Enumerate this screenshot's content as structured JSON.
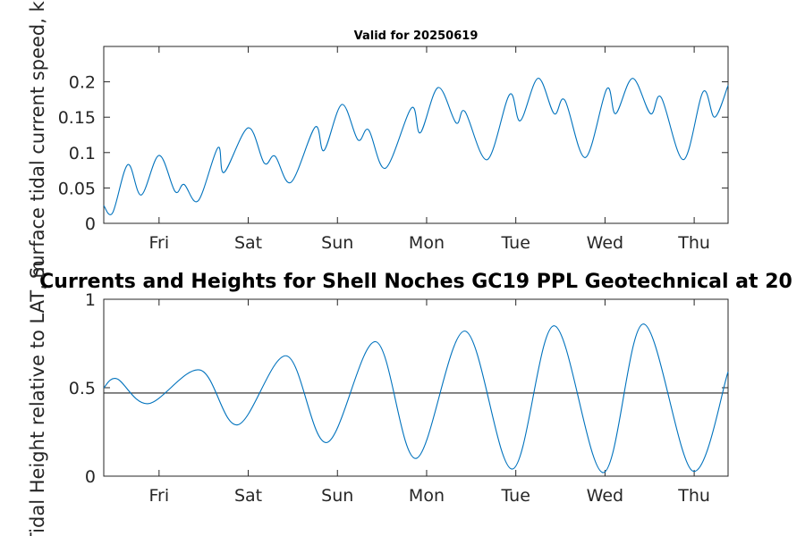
{
  "chart_data": [
    {
      "type": "line",
      "title": "Valid for 20250619",
      "ylabel": "Surface tidal current speed, kn",
      "ylim": [
        0,
        0.25
      ],
      "yticks": [
        0,
        0.05,
        0.1,
        0.15,
        0.2
      ],
      "ytick_labels": [
        "0",
        "0.05",
        "0.1",
        "0.15",
        "0.2"
      ],
      "xlim": [
        0,
        7.0
      ],
      "xtick_labels": [
        "Fri",
        "Sat",
        "Sun",
        "Mon",
        "Tue",
        "Wed",
        "Thu"
      ],
      "xticks": [
        0.62,
        1.62,
        2.62,
        3.62,
        4.62,
        5.62,
        6.62
      ],
      "grid": false,
      "series": [
        {
          "color": "#0072BD",
          "x": [
            0.0,
            0.1,
            0.27,
            0.42,
            0.62,
            0.8,
            0.9,
            1.06,
            1.28,
            1.35,
            1.62,
            1.8,
            1.92,
            2.1,
            2.37,
            2.47,
            2.67,
            2.85,
            2.97,
            3.16,
            3.45,
            3.55,
            3.75,
            3.95,
            4.05,
            4.3,
            4.55,
            4.67,
            4.87,
            5.05,
            5.17,
            5.4,
            5.64,
            5.74,
            5.93,
            6.13,
            6.25,
            6.5,
            6.72,
            6.85,
            7.0
          ],
          "y": [
            0.025,
            0.015,
            0.083,
            0.04,
            0.096,
            0.045,
            0.055,
            0.032,
            0.107,
            0.072,
            0.135,
            0.085,
            0.095,
            0.058,
            0.136,
            0.103,
            0.168,
            0.118,
            0.132,
            0.078,
            0.163,
            0.128,
            0.192,
            0.142,
            0.158,
            0.09,
            0.182,
            0.145,
            0.205,
            0.155,
            0.174,
            0.093,
            0.19,
            0.155,
            0.205,
            0.155,
            0.178,
            0.09,
            0.186,
            0.15,
            0.195
          ]
        }
      ]
    },
    {
      "type": "line",
      "title": "Currents and Heights for Shell Noches   GC19 PPL  Geotechnical at 20",
      "ylabel": "Tidal Height relative to LAT, m",
      "ylim": [
        0,
        1
      ],
      "yticks": [
        0,
        0.5,
        1
      ],
      "ytick_labels": [
        "0",
        "0.5",
        "1"
      ],
      "xlim": [
        0,
        7.0
      ],
      "xtick_labels": [
        "Fri",
        "Sat",
        "Sun",
        "Mon",
        "Tue",
        "Wed",
        "Thu"
      ],
      "xticks": [
        0.62,
        1.62,
        2.62,
        3.62,
        4.62,
        5.62,
        6.62
      ],
      "grid": false,
      "reference_line": {
        "y": 0.47,
        "color": "#262626"
      },
      "series": [
        {
          "color": "#0072BD",
          "x": [
            0.0,
            0.15,
            0.5,
            1.08,
            1.5,
            2.05,
            2.5,
            3.05,
            3.5,
            4.05,
            4.58,
            5.05,
            5.6,
            6.05,
            6.6,
            7.0
          ],
          "y": [
            0.5,
            0.55,
            0.41,
            0.6,
            0.29,
            0.68,
            0.19,
            0.76,
            0.1,
            0.82,
            0.04,
            0.85,
            0.02,
            0.86,
            0.03,
            0.59
          ]
        }
      ]
    }
  ]
}
